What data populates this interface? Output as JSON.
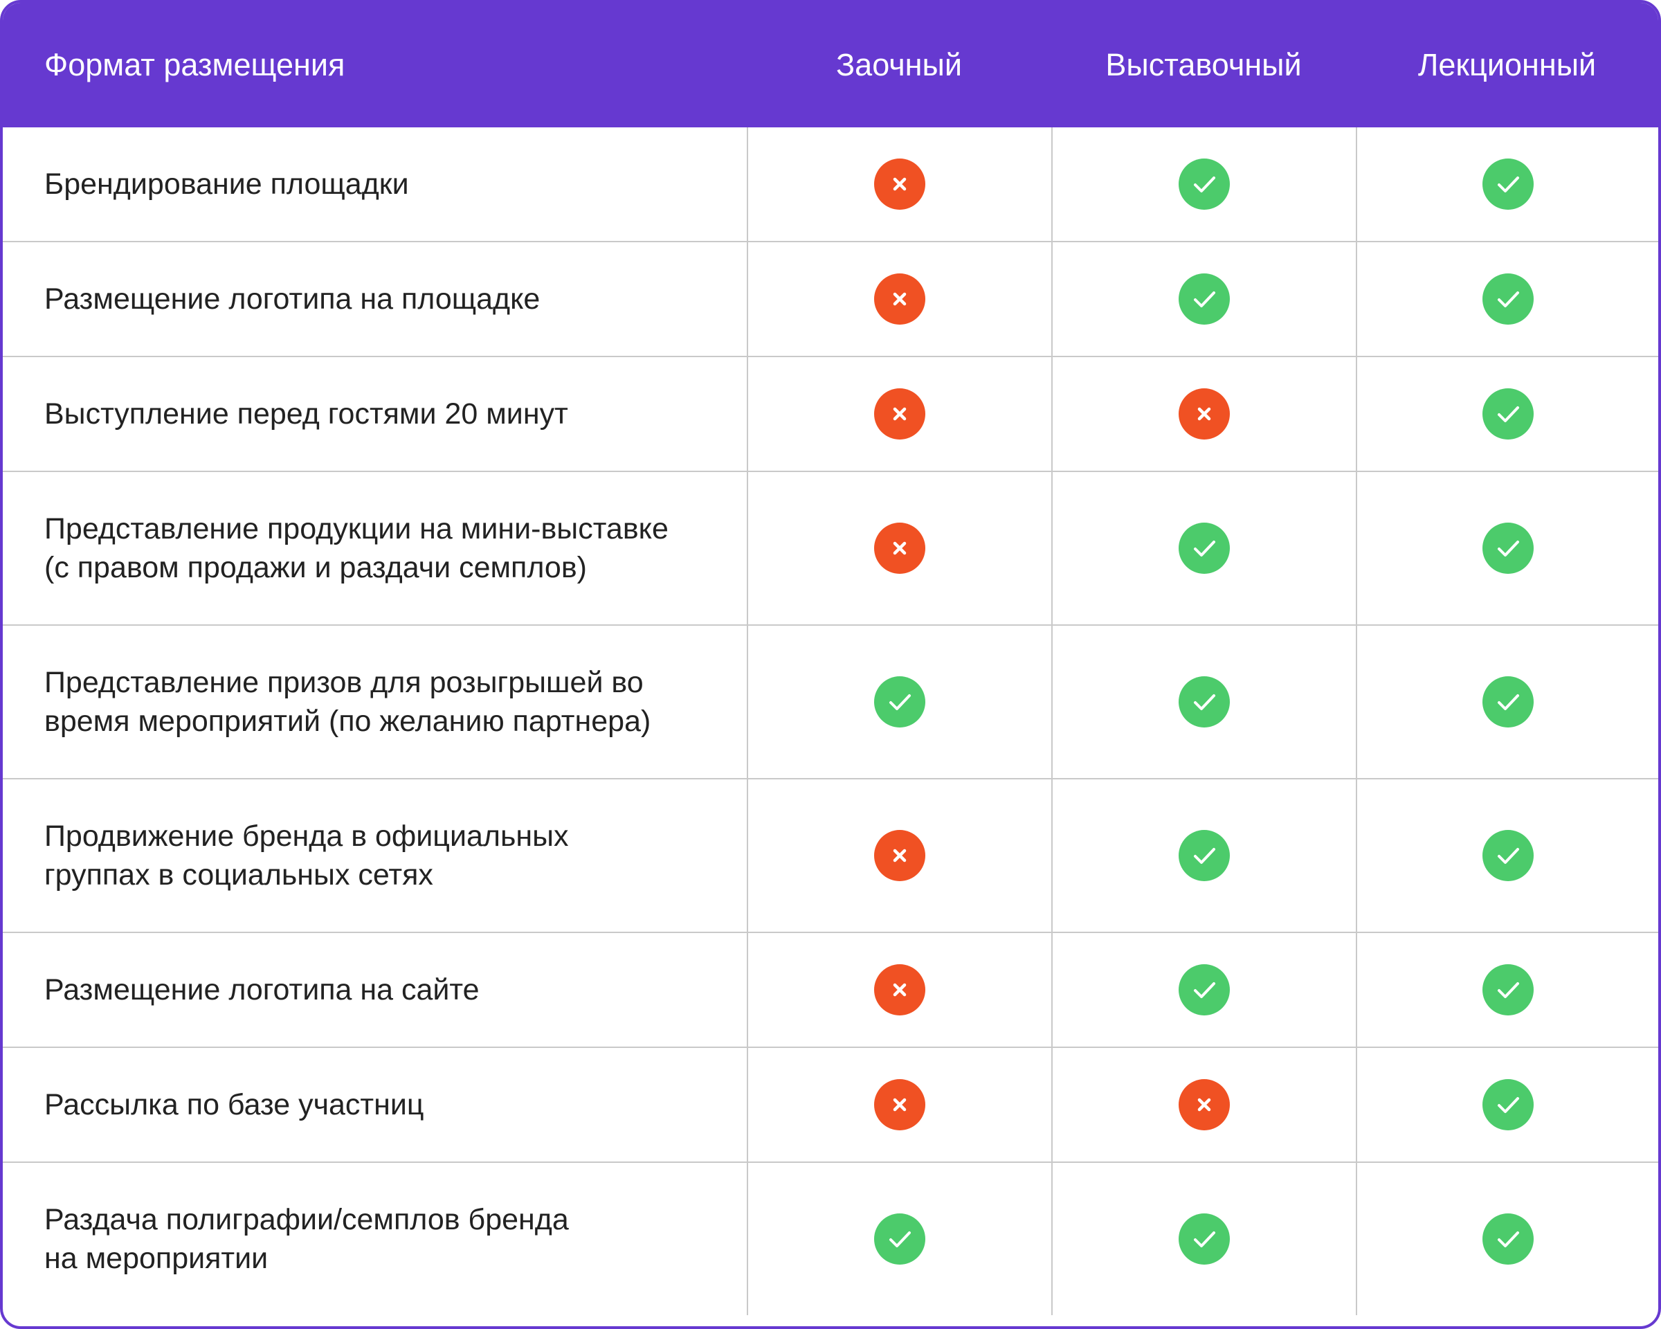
{
  "header": {
    "title": "Формат размещения",
    "columns": [
      "Заочный",
      "Выставочный",
      "Лекционный"
    ]
  },
  "rows": [
    {
      "label": "Брендирование площадки",
      "cells": [
        false,
        true,
        true
      ]
    },
    {
      "label": "Размещение логотипа на площадке",
      "cells": [
        false,
        true,
        true
      ]
    },
    {
      "label": "Выступление перед гостями 20 минут",
      "cells": [
        false,
        false,
        true
      ]
    },
    {
      "label": "Представление продукции на мини-выставке\n(с правом продажи и раздачи семплов)",
      "cells": [
        false,
        true,
        true
      ]
    },
    {
      "label": "Представление призов для розыгрышей во\nвремя мероприятий (по желанию партнера)",
      "cells": [
        true,
        true,
        true
      ]
    },
    {
      "label": "Продвижение бренда в официальных\nгруппах в социальных сетях",
      "cells": [
        false,
        true,
        true
      ]
    },
    {
      "label": "Размещение логотипа на сайте",
      "cells": [
        false,
        true,
        true
      ]
    },
    {
      "label": "Рассылка по базе участниц",
      "cells": [
        false,
        false,
        true
      ]
    },
    {
      "label": "Раздача полиграфии/семплов бренда\nна мероприятии",
      "cells": [
        true,
        true,
        true
      ]
    }
  ]
}
